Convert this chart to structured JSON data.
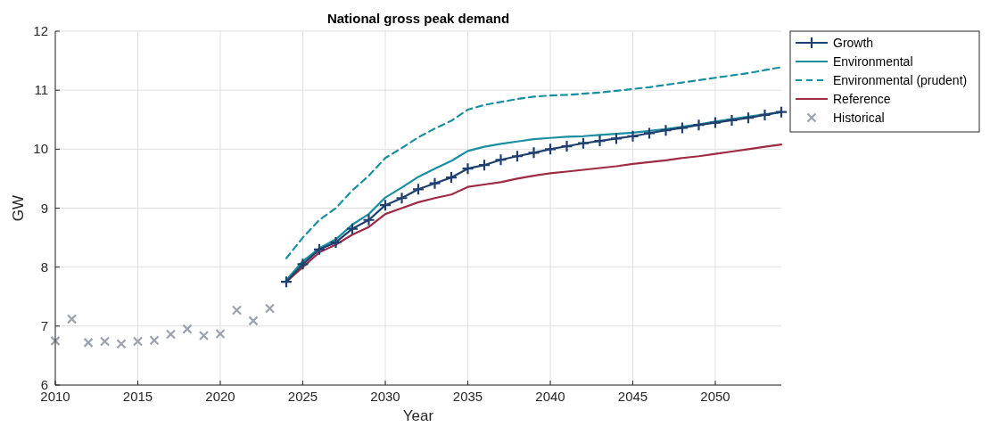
{
  "chart_data": {
    "type": "line",
    "title": "National gross peak demand",
    "xlabel": "Year",
    "ylabel": "GW",
    "xlim": [
      2010,
      2054
    ],
    "xticks": [
      2010,
      2015,
      2020,
      2025,
      2030,
      2035,
      2040,
      2045,
      2050
    ],
    "ylim": [
      6,
      12
    ],
    "yticks": [
      6,
      7,
      8,
      9,
      10,
      11,
      12
    ],
    "grid": true,
    "legend": "top right",
    "series": [
      {
        "name": "Growth",
        "color": "#1f3f6e",
        "marker": "cross",
        "x": [
          2024,
          2025,
          2026,
          2027,
          2028,
          2029,
          2030,
          2031,
          2032,
          2033,
          2034,
          2035,
          2036,
          2037,
          2038,
          2039,
          2040,
          2041,
          2042,
          2043,
          2044,
          2045,
          2046,
          2047,
          2048,
          2049,
          2050,
          2051,
          2052,
          2053,
          2054
        ],
        "values": [
          7.75,
          8.05,
          8.3,
          8.42,
          8.65,
          8.8,
          9.05,
          9.17,
          9.32,
          9.42,
          9.52,
          9.67,
          9.73,
          9.82,
          9.88,
          9.94,
          10.0,
          10.05,
          10.1,
          10.14,
          10.18,
          10.22,
          10.27,
          10.32,
          10.36,
          10.41,
          10.45,
          10.49,
          10.53,
          10.58,
          10.63
        ]
      },
      {
        "name": "Environmental",
        "color": "#1a8fa0",
        "x": [
          2024,
          2025,
          2026,
          2027,
          2028,
          2029,
          2030,
          2031,
          2032,
          2033,
          2034,
          2035,
          2036,
          2037,
          2038,
          2039,
          2040,
          2041,
          2042,
          2043,
          2044,
          2045,
          2046,
          2047,
          2048,
          2049,
          2050,
          2051,
          2052,
          2053,
          2054
        ],
        "values": [
          7.78,
          8.1,
          8.32,
          8.47,
          8.72,
          8.9,
          9.18,
          9.35,
          9.53,
          9.67,
          9.8,
          9.97,
          10.04,
          10.09,
          10.13,
          10.17,
          10.19,
          10.21,
          10.22,
          10.24,
          10.26,
          10.28,
          10.31,
          10.34,
          10.38,
          10.42,
          10.47,
          10.51,
          10.55,
          10.59,
          10.63
        ]
      },
      {
        "name": "Environmental (prudent)",
        "color": "#1a8fa0",
        "line_style": "dashed",
        "x": [
          2024,
          2025,
          2026,
          2027,
          2028,
          2029,
          2030,
          2031,
          2032,
          2033,
          2034,
          2035,
          2036,
          2037,
          2038,
          2039,
          2040,
          2041,
          2042,
          2043,
          2044,
          2045,
          2046,
          2047,
          2048,
          2049,
          2050,
          2051,
          2052,
          2053,
          2054
        ],
        "values": [
          8.15,
          8.5,
          8.8,
          9.0,
          9.3,
          9.55,
          9.85,
          10.02,
          10.2,
          10.35,
          10.48,
          10.67,
          10.75,
          10.8,
          10.85,
          10.89,
          10.91,
          10.92,
          10.94,
          10.96,
          10.99,
          11.02,
          11.05,
          11.09,
          11.13,
          11.17,
          11.21,
          11.25,
          11.29,
          11.34,
          11.39
        ]
      },
      {
        "name": "Reference",
        "color": "#9e2a44",
        "x": [
          2024,
          2025,
          2026,
          2027,
          2028,
          2029,
          2030,
          2031,
          2032,
          2033,
          2034,
          2035,
          2036,
          2037,
          2038,
          2039,
          2040,
          2041,
          2042,
          2043,
          2044,
          2045,
          2046,
          2047,
          2048,
          2049,
          2050,
          2051,
          2052,
          2053,
          2054
        ],
        "values": [
          7.75,
          8.0,
          8.25,
          8.38,
          8.55,
          8.68,
          8.9,
          9.0,
          9.1,
          9.17,
          9.23,
          9.36,
          9.4,
          9.44,
          9.5,
          9.55,
          9.59,
          9.62,
          9.65,
          9.68,
          9.71,
          9.75,
          9.78,
          9.81,
          9.85,
          9.88,
          9.92,
          9.96,
          10.0,
          10.04,
          10.08
        ]
      },
      {
        "name": "Historical",
        "type": "scatter",
        "color": "#9ca3ad",
        "marker": "cross",
        "x": [
          2010,
          2011,
          2012,
          2013,
          2014,
          2015,
          2016,
          2017,
          2018,
          2019,
          2020,
          2021,
          2022,
          2023
        ],
        "values": [
          6.75,
          7.12,
          6.72,
          6.74,
          6.7,
          6.74,
          6.76,
          6.86,
          6.95,
          6.84,
          6.87,
          7.27,
          7.09,
          7.3
        ]
      }
    ]
  }
}
